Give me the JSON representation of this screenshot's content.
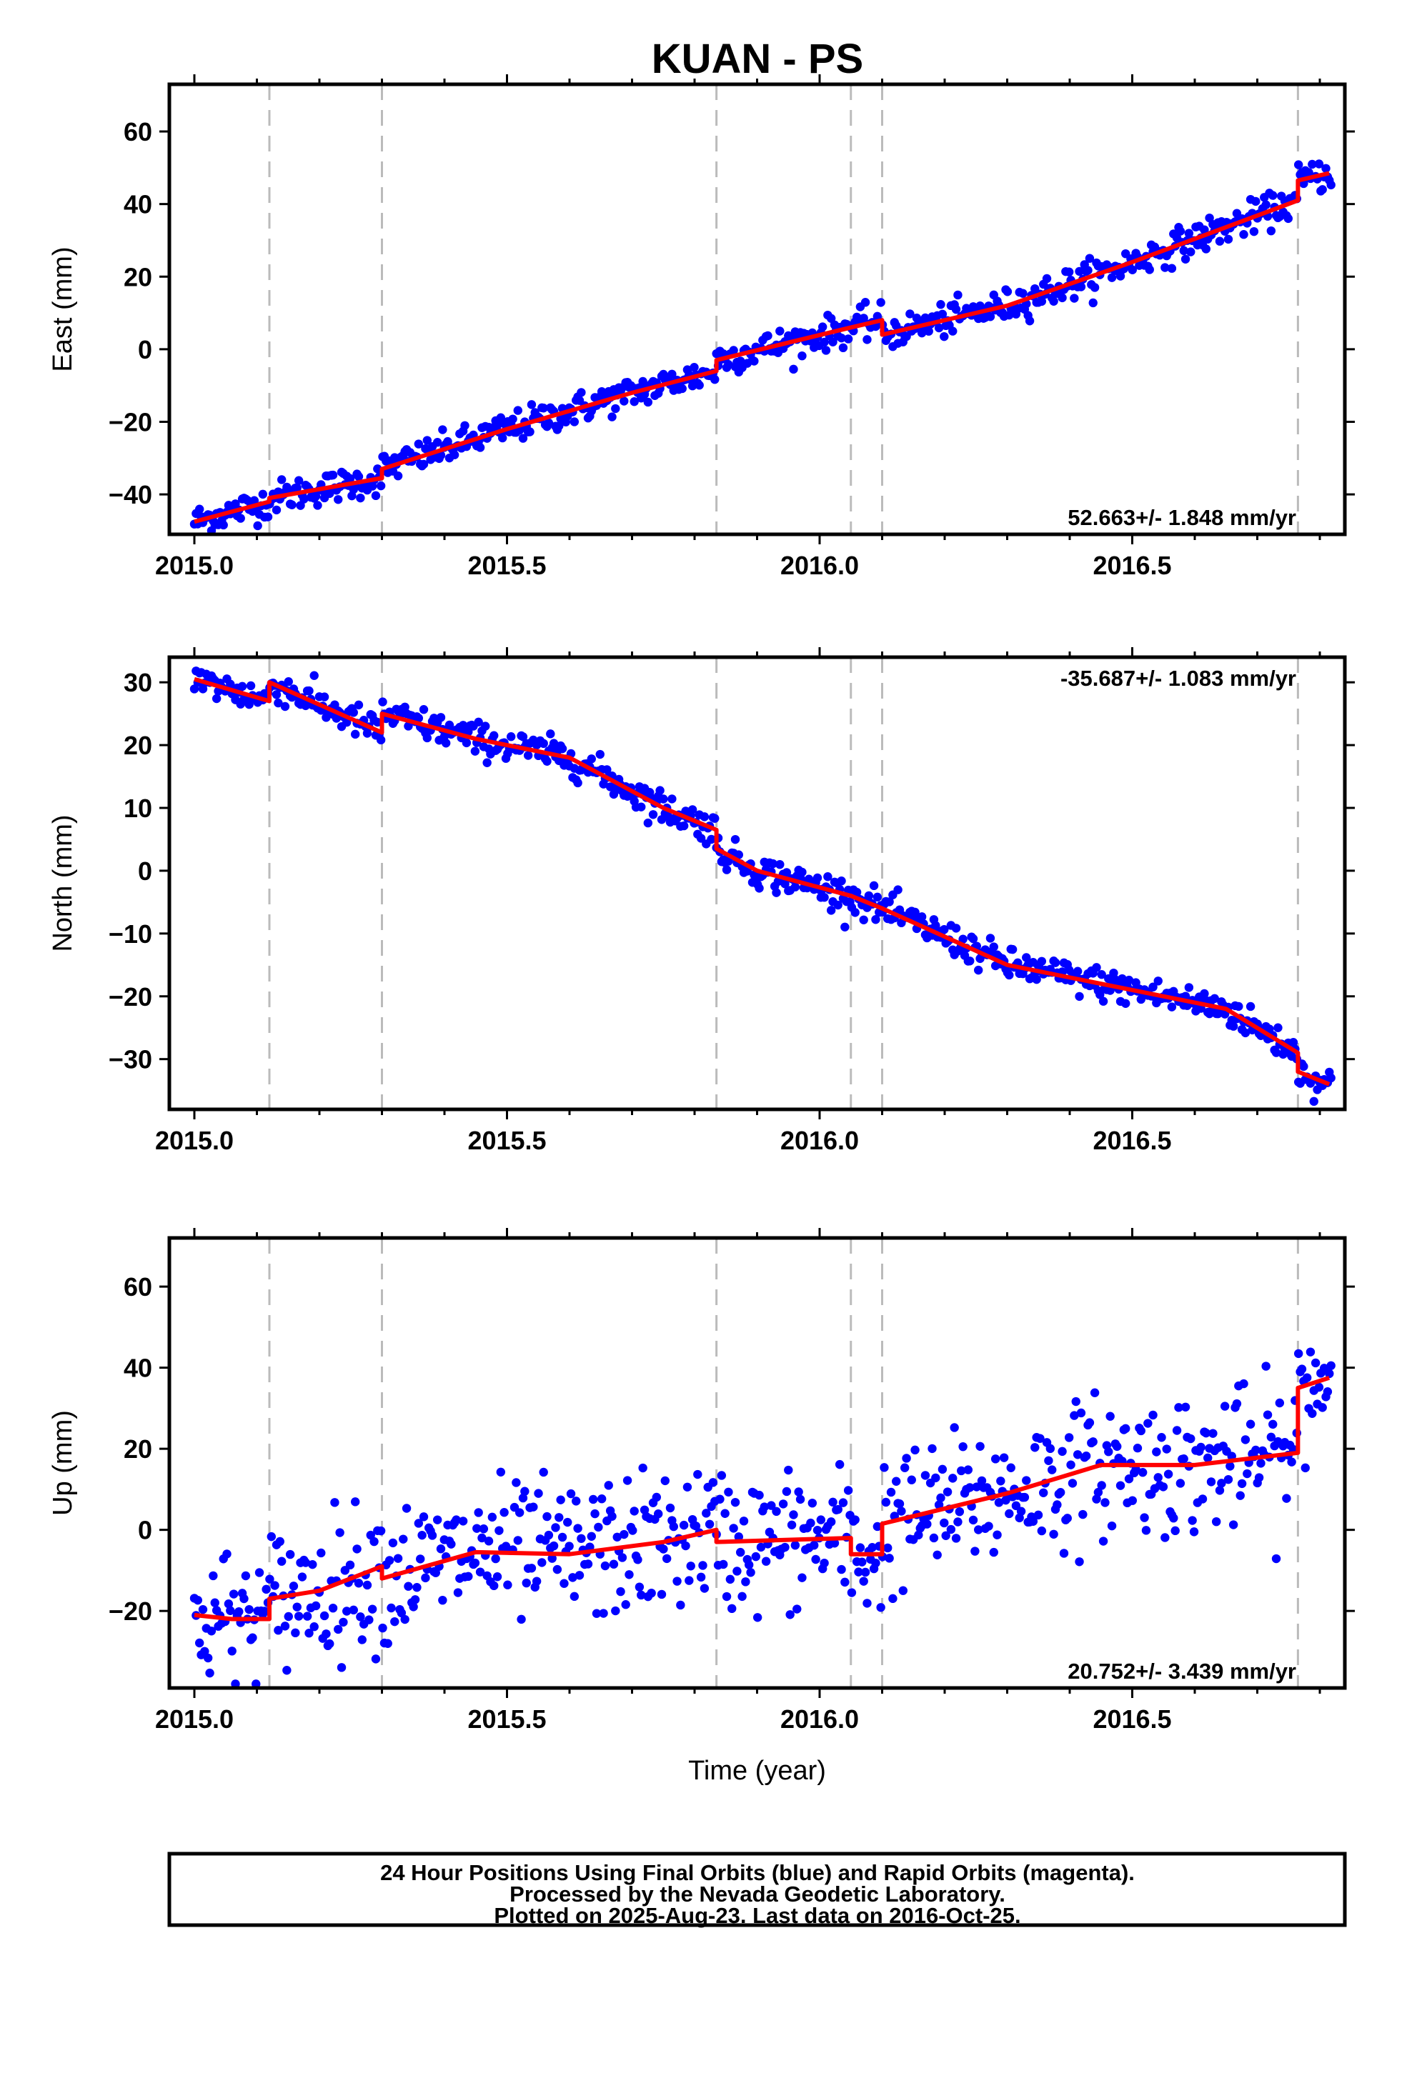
{
  "title": "KUAN - PS",
  "footer_lines": [
    "24 Hour Positions Using Final Orbits (blue) and Rapid Orbits (magenta).",
    "Processed by the Nevada Geodetic Laboratory.",
    "Plotted on 2025-Aug-23. Last data on 2016-Oct-25."
  ],
  "colors": {
    "points": "#0000ff",
    "model": "#ff0000",
    "steps": "#bbbbbb",
    "frame": "#000000"
  },
  "chart_data": [
    {
      "type": "scatter",
      "ylabel": "East (mm)",
      "xlabel": "",
      "xlim": [
        2014.96,
        2016.84
      ],
      "ylim": [
        -51,
        73
      ],
      "xticks": [
        "2015.0",
        "2015.5",
        "2016.0",
        "2016.5"
      ],
      "yticks": [
        "60",
        "40",
        "20",
        "0",
        "−20",
        "−40"
      ],
      "rate_label": "52.663+/- 1.848 mm/yr",
      "rate_position": "bottom-right",
      "rate": 52.663,
      "scatter_mm": 2.2,
      "step_epochs": [
        2015.12,
        2015.3,
        2015.835,
        2016.05,
        2016.1,
        2016.765
      ],
      "model": [
        {
          "x": 2015.0,
          "y": -47.5
        },
        {
          "x": 2015.12,
          "y": -42
        },
        {
          "x": 2015.12,
          "y": -41
        },
        {
          "x": 2015.3,
          "y": -35.5
        },
        {
          "x": 2015.3,
          "y": -33
        },
        {
          "x": 2015.5,
          "y": -22
        },
        {
          "x": 2015.7,
          "y": -12
        },
        {
          "x": 2015.835,
          "y": -6
        },
        {
          "x": 2015.835,
          "y": -3
        },
        {
          "x": 2016.05,
          "y": 6
        },
        {
          "x": 2016.1,
          "y": 8
        },
        {
          "x": 2016.1,
          "y": 4
        },
        {
          "x": 2016.3,
          "y": 12
        },
        {
          "x": 2016.5,
          "y": 24
        },
        {
          "x": 2016.765,
          "y": 41
        },
        {
          "x": 2016.765,
          "y": 46.5
        },
        {
          "x": 2016.815,
          "y": 48.5
        }
      ]
    },
    {
      "type": "scatter",
      "ylabel": "North (mm)",
      "xlabel": "",
      "xlim": [
        2014.96,
        2016.84
      ],
      "ylim": [
        -38,
        34
      ],
      "xticks": [
        "2015.0",
        "2015.5",
        "2016.0",
        "2016.5"
      ],
      "yticks": [
        "30",
        "20",
        "10",
        "0",
        "−10",
        "−20",
        "−30"
      ],
      "rate_label": "-35.687+/- 1.083 mm/yr",
      "rate_position": "top-right",
      "rate": -35.687,
      "scatter_mm": 1.3,
      "step_epochs": [
        2015.12,
        2015.3,
        2015.835,
        2016.05,
        2016.1,
        2016.765
      ],
      "model": [
        {
          "x": 2015.0,
          "y": 30.5
        },
        {
          "x": 2015.12,
          "y": 27
        },
        {
          "x": 2015.12,
          "y": 30
        },
        {
          "x": 2015.3,
          "y": 22
        },
        {
          "x": 2015.3,
          "y": 25
        },
        {
          "x": 2015.45,
          "y": 21
        },
        {
          "x": 2015.6,
          "y": 18
        },
        {
          "x": 2015.75,
          "y": 10
        },
        {
          "x": 2015.835,
          "y": 6.5
        },
        {
          "x": 2015.835,
          "y": 3.5
        },
        {
          "x": 2015.9,
          "y": 0
        },
        {
          "x": 2016.05,
          "y": -4
        },
        {
          "x": 2016.1,
          "y": -6
        },
        {
          "x": 2016.1,
          "y": -6
        },
        {
          "x": 2016.3,
          "y": -15
        },
        {
          "x": 2016.5,
          "y": -19
        },
        {
          "x": 2016.65,
          "y": -22
        },
        {
          "x": 2016.765,
          "y": -29
        },
        {
          "x": 2016.765,
          "y": -32
        },
        {
          "x": 2016.815,
          "y": -34
        }
      ]
    },
    {
      "type": "scatter",
      "ylabel": "Up (mm)",
      "xlabel": "Time (year)",
      "xlim": [
        2014.96,
        2016.84
      ],
      "ylim": [
        -39,
        72
      ],
      "xticks": [
        "2015.0",
        "2015.5",
        "2016.0",
        "2016.5"
      ],
      "yticks": [
        "60",
        "40",
        "20",
        "0",
        "−20"
      ],
      "rate_label": "20.752+/- 3.439 mm/yr",
      "rate_position": "bottom-right",
      "rate": 20.752,
      "scatter_mm": 8.5,
      "step_epochs": [
        2015.12,
        2015.3,
        2015.835,
        2016.05,
        2016.1,
        2016.765
      ],
      "model": [
        {
          "x": 2015.0,
          "y": -21
        },
        {
          "x": 2015.06,
          "y": -22
        },
        {
          "x": 2015.12,
          "y": -22
        },
        {
          "x": 2015.12,
          "y": -17
        },
        {
          "x": 2015.2,
          "y": -15
        },
        {
          "x": 2015.3,
          "y": -9
        },
        {
          "x": 2015.3,
          "y": -12
        },
        {
          "x": 2015.45,
          "y": -5.5
        },
        {
          "x": 2015.6,
          "y": -6
        },
        {
          "x": 2015.75,
          "y": -3
        },
        {
          "x": 2015.835,
          "y": 0
        },
        {
          "x": 2015.835,
          "y": -3
        },
        {
          "x": 2016.05,
          "y": -2
        },
        {
          "x": 2016.05,
          "y": -6
        },
        {
          "x": 2016.1,
          "y": -6
        },
        {
          "x": 2016.1,
          "y": 1.5
        },
        {
          "x": 2016.3,
          "y": 9
        },
        {
          "x": 2016.45,
          "y": 16
        },
        {
          "x": 2016.6,
          "y": 16
        },
        {
          "x": 2016.765,
          "y": 19
        },
        {
          "x": 2016.765,
          "y": 35
        },
        {
          "x": 2016.815,
          "y": 37.5
        }
      ]
    }
  ]
}
